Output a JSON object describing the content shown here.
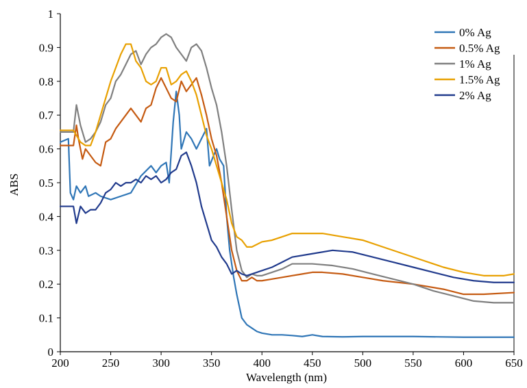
{
  "chart_data": {
    "type": "line",
    "title": "",
    "xlabel": "Wavelength (nm)",
    "ylabel": "ABS",
    "xlim": [
      200,
      650
    ],
    "ylim": [
      0,
      1
    ],
    "xticks": [
      "200",
      "250",
      "300",
      "350",
      "400",
      "450",
      "500",
      "550",
      "600",
      "650"
    ],
    "yticks": [
      "0",
      "0.1",
      "0.2",
      "0.3",
      "0.4",
      "0.5",
      "0.6",
      "0.7",
      "0.8",
      "0.9",
      "1"
    ],
    "grid": false,
    "legend_position": "top-right",
    "series": [
      {
        "name": "0% Ag",
        "color": "#2e75b6",
        "points": [
          [
            200,
            0.62
          ],
          [
            208,
            0.63
          ],
          [
            210,
            0.47
          ],
          [
            213,
            0.45
          ],
          [
            216,
            0.49
          ],
          [
            220,
            0.47
          ],
          [
            225,
            0.49
          ],
          [
            228,
            0.46
          ],
          [
            235,
            0.47
          ],
          [
            240,
            0.46
          ],
          [
            250,
            0.45
          ],
          [
            260,
            0.46
          ],
          [
            270,
            0.47
          ],
          [
            280,
            0.52
          ],
          [
            290,
            0.55
          ],
          [
            295,
            0.53
          ],
          [
            300,
            0.55
          ],
          [
            305,
            0.56
          ],
          [
            308,
            0.5
          ],
          [
            312,
            0.68
          ],
          [
            315,
            0.77
          ],
          [
            318,
            0.7
          ],
          [
            320,
            0.6
          ],
          [
            325,
            0.65
          ],
          [
            330,
            0.63
          ],
          [
            335,
            0.6
          ],
          [
            340,
            0.63
          ],
          [
            345,
            0.66
          ],
          [
            348,
            0.55
          ],
          [
            352,
            0.58
          ],
          [
            355,
            0.6
          ],
          [
            358,
            0.57
          ],
          [
            362,
            0.55
          ],
          [
            365,
            0.4
          ],
          [
            368,
            0.3
          ],
          [
            372,
            0.22
          ],
          [
            375,
            0.17
          ],
          [
            380,
            0.1
          ],
          [
            385,
            0.08
          ],
          [
            390,
            0.07
          ],
          [
            395,
            0.06
          ],
          [
            400,
            0.055
          ],
          [
            410,
            0.05
          ],
          [
            420,
            0.05
          ],
          [
            430,
            0.048
          ],
          [
            440,
            0.045
          ],
          [
            450,
            0.05
          ],
          [
            460,
            0.045
          ],
          [
            480,
            0.044
          ],
          [
            500,
            0.045
          ],
          [
            550,
            0.045
          ],
          [
            600,
            0.043
          ],
          [
            650,
            0.043
          ]
        ]
      },
      {
        "name": "0.5% Ag",
        "color": "#c55a11",
        "points": [
          [
            200,
            0.61
          ],
          [
            213,
            0.61
          ],
          [
            216,
            0.67
          ],
          [
            218,
            0.63
          ],
          [
            222,
            0.57
          ],
          [
            225,
            0.6
          ],
          [
            230,
            0.58
          ],
          [
            235,
            0.56
          ],
          [
            240,
            0.55
          ],
          [
            245,
            0.62
          ],
          [
            250,
            0.63
          ],
          [
            255,
            0.66
          ],
          [
            260,
            0.68
          ],
          [
            265,
            0.7
          ],
          [
            270,
            0.72
          ],
          [
            275,
            0.7
          ],
          [
            280,
            0.68
          ],
          [
            285,
            0.72
          ],
          [
            290,
            0.73
          ],
          [
            295,
            0.78
          ],
          [
            300,
            0.81
          ],
          [
            305,
            0.78
          ],
          [
            310,
            0.75
          ],
          [
            315,
            0.74
          ],
          [
            320,
            0.8
          ],
          [
            325,
            0.77
          ],
          [
            330,
            0.79
          ],
          [
            335,
            0.81
          ],
          [
            340,
            0.76
          ],
          [
            345,
            0.7
          ],
          [
            350,
            0.63
          ],
          [
            355,
            0.58
          ],
          [
            360,
            0.5
          ],
          [
            365,
            0.4
          ],
          [
            370,
            0.3
          ],
          [
            375,
            0.24
          ],
          [
            380,
            0.21
          ],
          [
            385,
            0.21
          ],
          [
            390,
            0.22
          ],
          [
            395,
            0.21
          ],
          [
            400,
            0.21
          ],
          [
            410,
            0.215
          ],
          [
            420,
            0.22
          ],
          [
            430,
            0.225
          ],
          [
            440,
            0.23
          ],
          [
            450,
            0.235
          ],
          [
            460,
            0.235
          ],
          [
            480,
            0.23
          ],
          [
            500,
            0.22
          ],
          [
            520,
            0.21
          ],
          [
            550,
            0.2
          ],
          [
            580,
            0.185
          ],
          [
            600,
            0.17
          ],
          [
            620,
            0.17
          ],
          [
            650,
            0.175
          ]
        ]
      },
      {
        "name": "1% Ag",
        "color": "#7f7f7f",
        "points": [
          [
            200,
            0.65
          ],
          [
            213,
            0.65
          ],
          [
            216,
            0.73
          ],
          [
            220,
            0.67
          ],
          [
            225,
            0.62
          ],
          [
            230,
            0.63
          ],
          [
            235,
            0.65
          ],
          [
            240,
            0.68
          ],
          [
            245,
            0.73
          ],
          [
            250,
            0.75
          ],
          [
            255,
            0.8
          ],
          [
            260,
            0.82
          ],
          [
            265,
            0.85
          ],
          [
            270,
            0.88
          ],
          [
            275,
            0.89
          ],
          [
            280,
            0.85
          ],
          [
            285,
            0.88
          ],
          [
            290,
            0.9
          ],
          [
            295,
            0.91
          ],
          [
            300,
            0.93
          ],
          [
            305,
            0.94
          ],
          [
            310,
            0.93
          ],
          [
            315,
            0.9
          ],
          [
            320,
            0.88
          ],
          [
            325,
            0.86
          ],
          [
            330,
            0.9
          ],
          [
            335,
            0.91
          ],
          [
            340,
            0.89
          ],
          [
            345,
            0.84
          ],
          [
            350,
            0.78
          ],
          [
            355,
            0.73
          ],
          [
            360,
            0.65
          ],
          [
            365,
            0.55
          ],
          [
            370,
            0.42
          ],
          [
            375,
            0.3
          ],
          [
            380,
            0.24
          ],
          [
            385,
            0.22
          ],
          [
            390,
            0.23
          ],
          [
            395,
            0.225
          ],
          [
            400,
            0.225
          ],
          [
            410,
            0.235
          ],
          [
            420,
            0.245
          ],
          [
            430,
            0.26
          ],
          [
            450,
            0.26
          ],
          [
            470,
            0.255
          ],
          [
            490,
            0.245
          ],
          [
            510,
            0.23
          ],
          [
            530,
            0.215
          ],
          [
            550,
            0.2
          ],
          [
            570,
            0.18
          ],
          [
            590,
            0.165
          ],
          [
            610,
            0.15
          ],
          [
            630,
            0.145
          ],
          [
            650,
            0.145
          ]
        ]
      },
      {
        "name": "1.5% Ag",
        "color": "#e8a000",
        "points": [
          [
            200,
            0.655
          ],
          [
            213,
            0.655
          ],
          [
            216,
            0.64
          ],
          [
            220,
            0.62
          ],
          [
            225,
            0.61
          ],
          [
            230,
            0.61
          ],
          [
            235,
            0.65
          ],
          [
            240,
            0.7
          ],
          [
            245,
            0.75
          ],
          [
            250,
            0.8
          ],
          [
            255,
            0.84
          ],
          [
            260,
            0.88
          ],
          [
            265,
            0.91
          ],
          [
            270,
            0.91
          ],
          [
            275,
            0.86
          ],
          [
            280,
            0.84
          ],
          [
            285,
            0.8
          ],
          [
            290,
            0.79
          ],
          [
            295,
            0.8
          ],
          [
            300,
            0.84
          ],
          [
            305,
            0.84
          ],
          [
            310,
            0.79
          ],
          [
            315,
            0.8
          ],
          [
            320,
            0.82
          ],
          [
            325,
            0.83
          ],
          [
            330,
            0.8
          ],
          [
            335,
            0.76
          ],
          [
            340,
            0.7
          ],
          [
            345,
            0.64
          ],
          [
            350,
            0.6
          ],
          [
            355,
            0.55
          ],
          [
            360,
            0.5
          ],
          [
            365,
            0.45
          ],
          [
            370,
            0.38
          ],
          [
            375,
            0.34
          ],
          [
            380,
            0.33
          ],
          [
            385,
            0.31
          ],
          [
            390,
            0.31
          ],
          [
            400,
            0.325
          ],
          [
            410,
            0.33
          ],
          [
            420,
            0.34
          ],
          [
            430,
            0.35
          ],
          [
            450,
            0.35
          ],
          [
            460,
            0.35
          ],
          [
            470,
            0.345
          ],
          [
            480,
            0.34
          ],
          [
            500,
            0.33
          ],
          [
            520,
            0.31
          ],
          [
            540,
            0.29
          ],
          [
            560,
            0.27
          ],
          [
            580,
            0.25
          ],
          [
            600,
            0.235
          ],
          [
            620,
            0.225
          ],
          [
            640,
            0.225
          ],
          [
            650,
            0.23
          ]
        ]
      },
      {
        "name": "2% Ag",
        "color": "#203a8c",
        "points": [
          [
            200,
            0.43
          ],
          [
            213,
            0.43
          ],
          [
            216,
            0.38
          ],
          [
            220,
            0.43
          ],
          [
            225,
            0.41
          ],
          [
            230,
            0.42
          ],
          [
            235,
            0.42
          ],
          [
            240,
            0.44
          ],
          [
            245,
            0.47
          ],
          [
            250,
            0.48
          ],
          [
            255,
            0.5
          ],
          [
            260,
            0.49
          ],
          [
            265,
            0.5
          ],
          [
            270,
            0.5
          ],
          [
            275,
            0.51
          ],
          [
            280,
            0.5
          ],
          [
            285,
            0.52
          ],
          [
            290,
            0.51
          ],
          [
            295,
            0.52
          ],
          [
            300,
            0.5
          ],
          [
            305,
            0.51
          ],
          [
            310,
            0.53
          ],
          [
            315,
            0.54
          ],
          [
            320,
            0.58
          ],
          [
            325,
            0.59
          ],
          [
            330,
            0.55
          ],
          [
            335,
            0.5
          ],
          [
            340,
            0.43
          ],
          [
            345,
            0.38
          ],
          [
            350,
            0.33
          ],
          [
            355,
            0.31
          ],
          [
            360,
            0.28
          ],
          [
            365,
            0.26
          ],
          [
            370,
            0.23
          ],
          [
            375,
            0.24
          ],
          [
            380,
            0.23
          ],
          [
            385,
            0.225
          ],
          [
            390,
            0.23
          ],
          [
            395,
            0.235
          ],
          [
            400,
            0.24
          ],
          [
            410,
            0.25
          ],
          [
            420,
            0.265
          ],
          [
            430,
            0.28
          ],
          [
            450,
            0.29
          ],
          [
            470,
            0.3
          ],
          [
            490,
            0.295
          ],
          [
            510,
            0.28
          ],
          [
            530,
            0.265
          ],
          [
            550,
            0.25
          ],
          [
            570,
            0.235
          ],
          [
            590,
            0.22
          ],
          [
            610,
            0.21
          ],
          [
            630,
            0.205
          ],
          [
            650,
            0.205
          ]
        ]
      }
    ]
  }
}
